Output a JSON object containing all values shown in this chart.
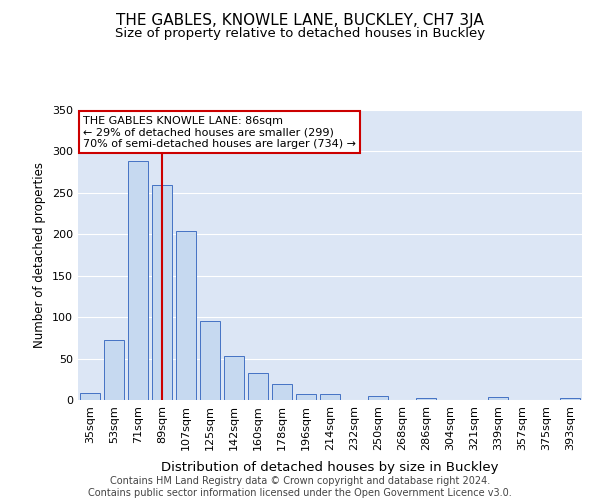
{
  "title": "THE GABLES, KNOWLE LANE, BUCKLEY, CH7 3JA",
  "subtitle": "Size of property relative to detached houses in Buckley",
  "xlabel": "Distribution of detached houses by size in Buckley",
  "ylabel": "Number of detached properties",
  "categories": [
    "35sqm",
    "53sqm",
    "71sqm",
    "89sqm",
    "107sqm",
    "125sqm",
    "142sqm",
    "160sqm",
    "178sqm",
    "196sqm",
    "214sqm",
    "232sqm",
    "250sqm",
    "268sqm",
    "286sqm",
    "304sqm",
    "321sqm",
    "339sqm",
    "357sqm",
    "375sqm",
    "393sqm"
  ],
  "values": [
    8,
    73,
    288,
    260,
    204,
    95,
    53,
    32,
    19,
    7,
    7,
    0,
    5,
    0,
    3,
    0,
    0,
    4,
    0,
    0,
    3
  ],
  "bar_color": "#c6d9f0",
  "bar_edge_color": "#4472c4",
  "vline_x_index": 3,
  "vline_color": "#cc0000",
  "annotation_text": "THE GABLES KNOWLE LANE: 86sqm\n← 29% of detached houses are smaller (299)\n70% of semi-detached houses are larger (734) →",
  "annotation_box_color": "white",
  "annotation_box_edge_color": "#cc0000",
  "ylim": [
    0,
    350
  ],
  "yticks": [
    0,
    50,
    100,
    150,
    200,
    250,
    300,
    350
  ],
  "plot_bg_color": "#dce6f5",
  "fig_bg_color": "white",
  "grid_color": "white",
  "footer_line1": "Contains HM Land Registry data © Crown copyright and database right 2024.",
  "footer_line2": "Contains public sector information licensed under the Open Government Licence v3.0.",
  "title_fontsize": 11,
  "subtitle_fontsize": 9.5,
  "xlabel_fontsize": 9.5,
  "ylabel_fontsize": 8.5,
  "tick_fontsize": 8,
  "annotation_fontsize": 8,
  "footer_fontsize": 7
}
